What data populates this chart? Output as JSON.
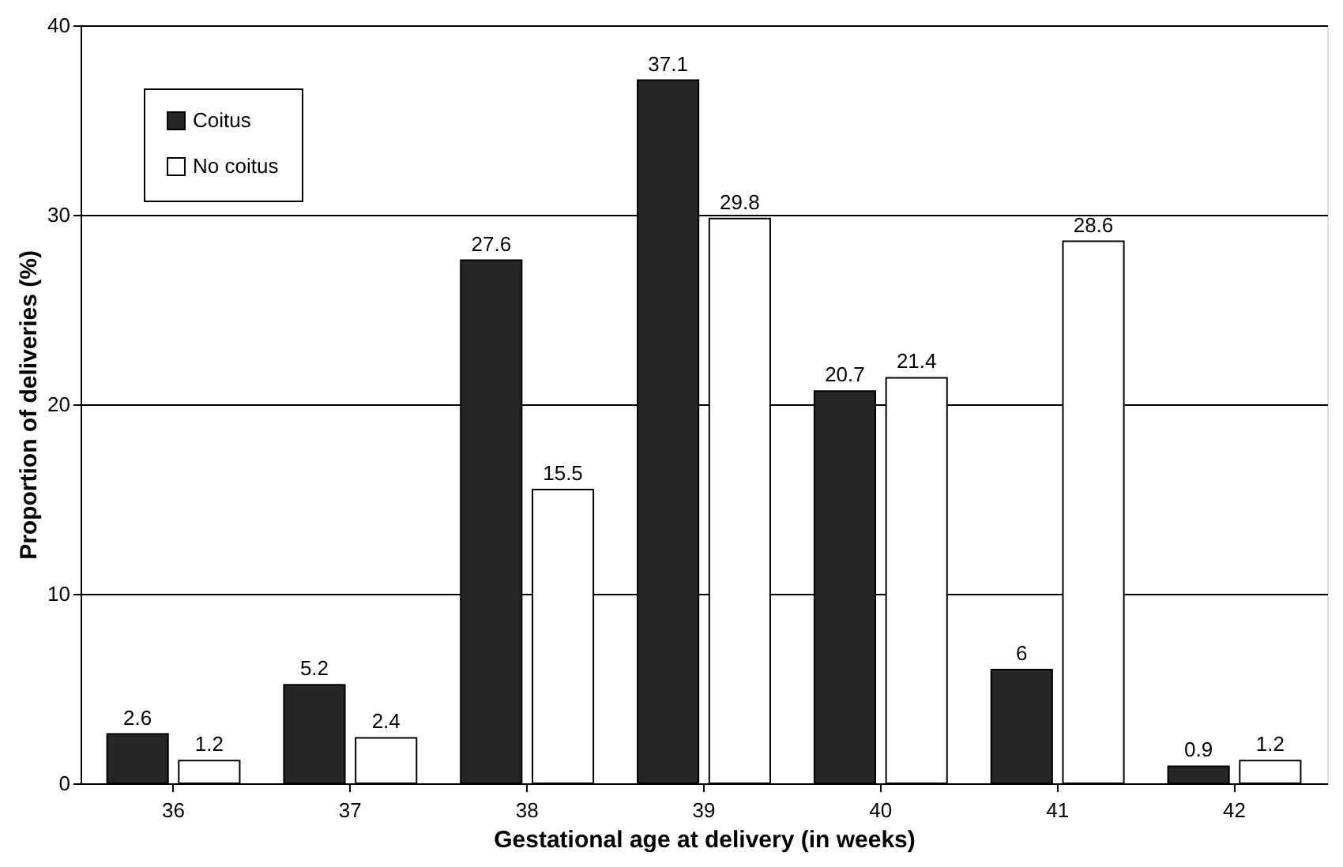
{
  "chart_data": {
    "type": "bar",
    "xlabel": "Gestational age at delivery (in weeks)",
    "ylabel": "Proportion of deliveries (%)",
    "categories": [
      "36",
      "37",
      "38",
      "39",
      "40",
      "41",
      "42"
    ],
    "series": [
      {
        "name": "Coitus",
        "color": "#262626",
        "values": [
          2.6,
          5.2,
          27.6,
          37.1,
          20.7,
          6,
          0.9
        ]
      },
      {
        "name": "No coitus",
        "color": "#ffffff",
        "values": [
          1.2,
          2.4,
          15.5,
          29.8,
          21.4,
          28.6,
          1.2
        ]
      }
    ],
    "ylim": [
      0,
      40
    ],
    "yticks": [
      0,
      10,
      20,
      30,
      40
    ],
    "grid": "y",
    "legend": "top left",
    "data_labels": true
  }
}
